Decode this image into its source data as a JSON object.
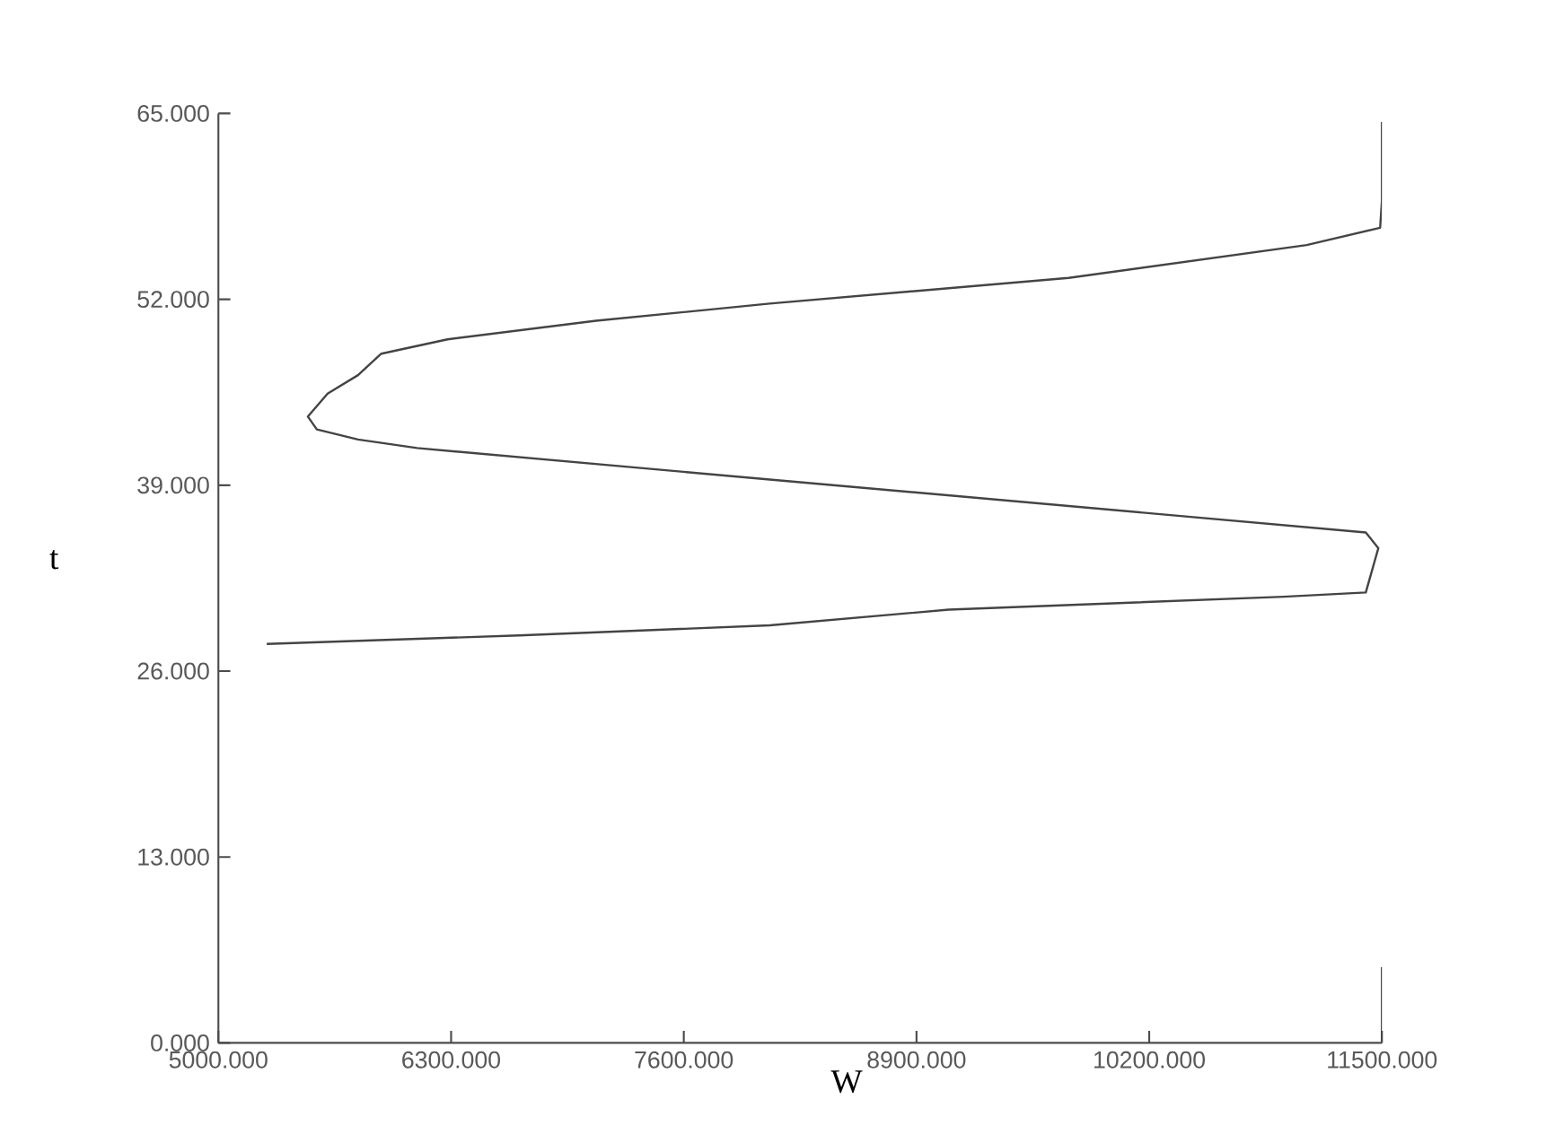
{
  "chart_data": {
    "type": "line",
    "xlabel": "W",
    "ylabel": "t",
    "xlim": [
      5000,
      11500
    ],
    "ylim": [
      0,
      65
    ],
    "xticks": [
      {
        "value": 5000,
        "label": "5000.000"
      },
      {
        "value": 6300,
        "label": "6300.000"
      },
      {
        "value": 7600,
        "label": "7600.000"
      },
      {
        "value": 8900,
        "label": "8900.000"
      },
      {
        "value": 10200,
        "label": "10200.000"
      },
      {
        "value": 11500,
        "label": "11500.000"
      }
    ],
    "yticks": [
      {
        "value": 0,
        "label": "0.000"
      },
      {
        "value": 13,
        "label": "13.000"
      },
      {
        "value": 26,
        "label": "26.000"
      },
      {
        "value": 39,
        "label": "39.000"
      },
      {
        "value": 52,
        "label": "52.000"
      },
      {
        "value": 65,
        "label": "65.000"
      }
    ],
    "series": [
      {
        "color": "#444444",
        "x": [
          5270,
          6680,
          8080,
          9080,
          10950,
          11410,
          11480,
          11410,
          8080,
          6110,
          5780,
          5550,
          5500,
          5610,
          5780,
          5910,
          6280,
          7110,
          8080,
          9750,
          11080,
          11490,
          11500,
          11500
        ],
        "values": [
          27.9,
          28.5,
          29.2,
          30.3,
          31.2,
          31.5,
          34.6,
          35.7,
          39.4,
          41.6,
          42.2,
          42.9,
          43.8,
          45.4,
          46.7,
          48.2,
          49.2,
          50.5,
          51.7,
          53.5,
          55.8,
          57.0,
          58.9,
          64.4
        ]
      },
      {
        "color": "#444444",
        "x": [
          11500,
          11500
        ],
        "values": [
          0,
          5.3
        ]
      }
    ],
    "grid": false,
    "marker": "none",
    "line_style": "solid"
  }
}
